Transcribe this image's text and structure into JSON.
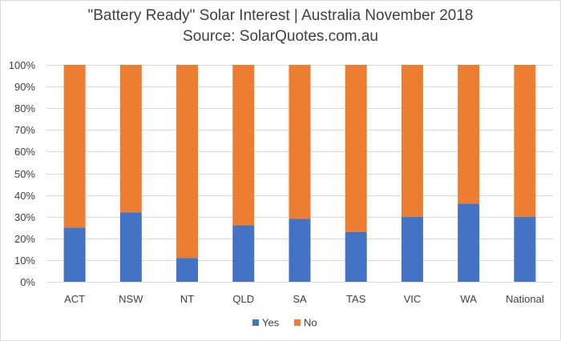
{
  "chart_data": {
    "type": "bar",
    "stacked": true,
    "percent_stacked": true,
    "title": "\"Battery Ready\" Solar Interest | Australia November 2018",
    "subtitle": "Source: SolarQuotes.com.au",
    "xlabel": "",
    "ylabel": "",
    "ylim": [
      0,
      100
    ],
    "y_ticks": [
      "0%",
      "10%",
      "20%",
      "30%",
      "40%",
      "50%",
      "60%",
      "70%",
      "80%",
      "90%",
      "100%"
    ],
    "grid": true,
    "legend_position": "bottom",
    "categories": [
      "ACT",
      "NSW",
      "NT",
      "QLD",
      "SA",
      "TAS",
      "VIC",
      "WA",
      "National"
    ],
    "series": [
      {
        "name": "Yes",
        "color": "#4472c4",
        "values": [
          25,
          32,
          11,
          26,
          29,
          23,
          30,
          36,
          30
        ]
      },
      {
        "name": "No",
        "color": "#ed7d31",
        "values": [
          75,
          68,
          89,
          74,
          71,
          77,
          70,
          64,
          70
        ]
      }
    ]
  }
}
